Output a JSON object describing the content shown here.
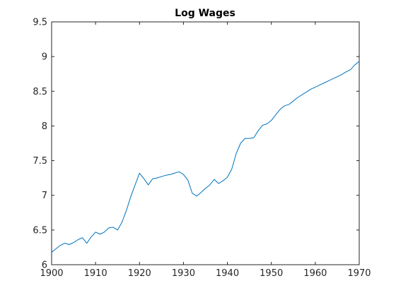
{
  "chart_data": {
    "type": "line",
    "title": "Log Wages",
    "xlabel": "",
    "ylabel": "",
    "xlim": [
      1900,
      1970
    ],
    "ylim": [
      6,
      9.5
    ],
    "xticks": [
      "1900",
      "1910",
      "1920",
      "1930",
      "1940",
      "1950",
      "1960",
      "1970"
    ],
    "yticks": [
      "6",
      "6.5",
      "7",
      "7.5",
      "8",
      "8.5",
      "9",
      "9.5"
    ],
    "grid": false,
    "line_color": "#0072BD",
    "series": [
      {
        "x": [
          1900,
          1901,
          1902,
          1903,
          1904,
          1905,
          1906,
          1907,
          1908,
          1909,
          1910,
          1911,
          1912,
          1913,
          1914,
          1915,
          1916,
          1917,
          1918,
          1919,
          1920,
          1921,
          1922,
          1923,
          1924,
          1925,
          1926,
          1927,
          1928,
          1929,
          1930,
          1931,
          1932,
          1933,
          1934,
          1935,
          1936,
          1937,
          1938,
          1939,
          1940,
          1941,
          1942,
          1943,
          1944,
          1945,
          1946,
          1947,
          1948,
          1949,
          1950,
          1951,
          1952,
          1953,
          1954,
          1955,
          1956,
          1957,
          1958,
          1959,
          1960,
          1961,
          1962,
          1963,
          1964,
          1965,
          1966,
          1967,
          1968,
          1969,
          1970
        ],
        "y": [
          6.18,
          6.23,
          6.28,
          6.31,
          6.29,
          6.32,
          6.36,
          6.39,
          6.31,
          6.4,
          6.47,
          6.44,
          6.47,
          6.53,
          6.54,
          6.5,
          6.61,
          6.78,
          6.98,
          7.15,
          7.32,
          7.24,
          7.15,
          7.24,
          7.25,
          7.27,
          7.29,
          7.3,
          7.32,
          7.34,
          7.3,
          7.22,
          7.03,
          6.99,
          7.04,
          7.1,
          7.15,
          7.23,
          7.17,
          7.21,
          7.26,
          7.38,
          7.6,
          7.75,
          7.82,
          7.82,
          7.83,
          7.93,
          8.01,
          8.03,
          8.08,
          8.16,
          8.24,
          8.29,
          8.31,
          8.36,
          8.41,
          8.45,
          8.49,
          8.53,
          8.56,
          8.59,
          8.62,
          8.65,
          8.68,
          8.71,
          8.74,
          8.78,
          8.81,
          8.88,
          8.93
        ]
      }
    ]
  }
}
